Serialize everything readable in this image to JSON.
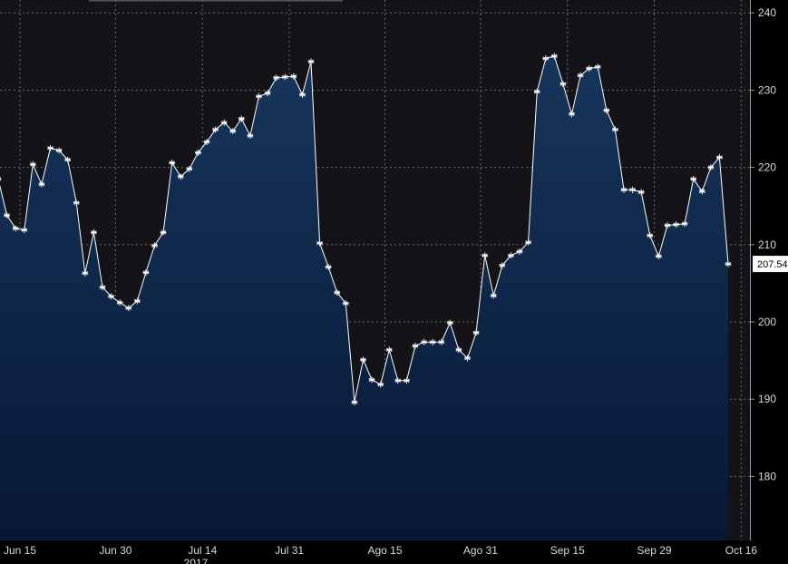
{
  "chart_data": {
    "type": "area",
    "title": "",
    "xlabel": "",
    "ylabel": "",
    "year_label": "2017",
    "ylim": [
      172,
      242
    ],
    "y_ticks": [
      180,
      190,
      200,
      210,
      220,
      230,
      240
    ],
    "x_ticks": [
      "Jun 15",
      "Jun 30",
      "Jul 14",
      "Jul 31",
      "Ago 15",
      "Ago 31",
      "Sep 15",
      "Sep 29",
      "Oct 16"
    ],
    "last_value_label": "207.54",
    "grid": true,
    "colors": {
      "background": "#141418",
      "area_top": "#17355c",
      "area_bottom": "#071834",
      "line": "#ffffff",
      "grid": "#6a6a6a",
      "last_label_bg": "#ffffff"
    },
    "series": [
      {
        "values": [
          218.5,
          213.8,
          212.1,
          211.9,
          220.4,
          217.8,
          222.5,
          222.2,
          221.0,
          215.4,
          206.3,
          211.6,
          204.5,
          203.3,
          202.5,
          201.8,
          202.7,
          206.4,
          209.9,
          211.6,
          220.6,
          218.8,
          219.8,
          221.9,
          223.3,
          224.9,
          225.8,
          224.7,
          226.3,
          224.1,
          229.2,
          229.6,
          231.6,
          231.7,
          231.8,
          229.4,
          233.7,
          210.2,
          207.1,
          203.8,
          202.4,
          189.6,
          195.1,
          192.5,
          191.9,
          196.4,
          192.4,
          192.4,
          196.9,
          197.4,
          197.4,
          197.4,
          199.9,
          196.4,
          195.3,
          198.6,
          208.6,
          203.4,
          207.3,
          208.6,
          209.1,
          210.3,
          229.8,
          234.1,
          234.4,
          230.8,
          226.9,
          231.9,
          232.8,
          233.0,
          227.4,
          224.9,
          217.1,
          217.1,
          216.8,
          211.2,
          208.5,
          212.5,
          212.6,
          212.7,
          218.5,
          216.9,
          220.0,
          221.3,
          207.5
        ]
      }
    ]
  }
}
